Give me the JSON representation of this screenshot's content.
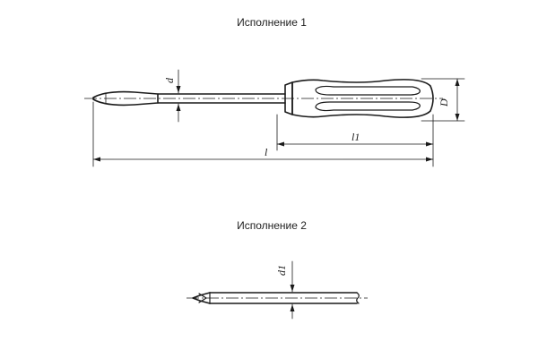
{
  "figures": [
    {
      "caption": "Исполнение 1",
      "dimensions": {
        "shaft_diameter": "d",
        "handle_diameter": "D",
        "overall_length": "l",
        "handle_length": "l1"
      }
    },
    {
      "caption": "Исполнение 2",
      "dimensions": {
        "tip_diameter": "d1"
      }
    }
  ]
}
